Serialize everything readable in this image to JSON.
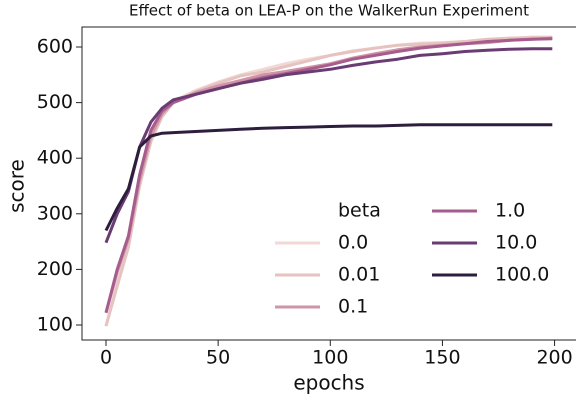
{
  "chart_data": {
    "type": "line",
    "title": "Effect of beta on LEA-P on the WalkerRun Experiment",
    "x_label": "epochs",
    "y_label": "score",
    "legend_title": "beta",
    "x": [
      0,
      5,
      10,
      15,
      20,
      25,
      30,
      40,
      50,
      60,
      70,
      80,
      90,
      100,
      110,
      120,
      130,
      140,
      150,
      160,
      170,
      180,
      190,
      199
    ],
    "series": [
      {
        "name": "0.0",
        "color": "#f1d9d5",
        "values": [
          98,
          175,
          245,
          355,
          435,
          478,
          502,
          522,
          537,
          550,
          560,
          570,
          578,
          585,
          593,
          598,
          603,
          607,
          608,
          610,
          612,
          615,
          618,
          618
        ]
      },
      {
        "name": "0.01",
        "color": "#e6c3c0",
        "values": [
          98,
          170,
          240,
          350,
          430,
          475,
          500,
          520,
          535,
          548,
          555,
          565,
          575,
          585,
          592,
          598,
          603,
          605,
          607,
          610,
          614,
          616,
          617,
          617
        ]
      },
      {
        "name": "0.1",
        "color": "#cf94a6",
        "values": [
          122,
          195,
          255,
          360,
          440,
          480,
          500,
          518,
          530,
          540,
          550,
          556,
          563,
          570,
          580,
          588,
          595,
          600,
          603,
          606,
          608,
          612,
          614,
          616
        ]
      },
      {
        "name": "1.0",
        "color": "#a65d8d",
        "values": [
          122,
          200,
          260,
          370,
          450,
          485,
          500,
          515,
          525,
          535,
          545,
          552,
          560,
          568,
          578,
          585,
          592,
          598,
          602,
          606,
          610,
          612,
          614,
          615
        ]
      },
      {
        "name": "10.0",
        "color": "#6b3b74",
        "values": [
          248,
          300,
          340,
          420,
          465,
          490,
          505,
          515,
          525,
          535,
          542,
          550,
          555,
          560,
          567,
          573,
          578,
          585,
          588,
          592,
          594,
          596,
          597,
          597
        ]
      },
      {
        "name": "100.0",
        "color": "#2e1e3d",
        "values": [
          270,
          310,
          345,
          420,
          440,
          445,
          446,
          448,
          450,
          452,
          454,
          455,
          456,
          457,
          458,
          458,
          459,
          460,
          460,
          460,
          460,
          460,
          460,
          460
        ]
      }
    ],
    "xlim": [
      -10.7,
      210
    ],
    "ylim": [
      73,
      636
    ],
    "xticks": [
      0,
      50,
      100,
      150,
      200
    ],
    "yticks": [
      100,
      200,
      300,
      400,
      500,
      600
    ]
  }
}
